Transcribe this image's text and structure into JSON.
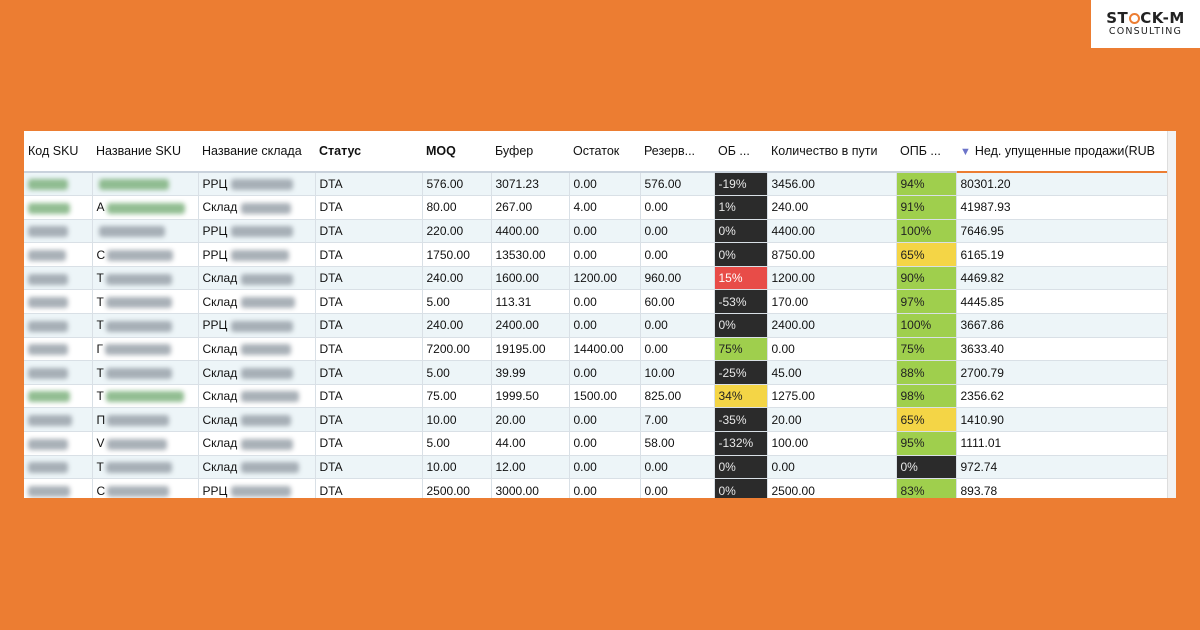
{
  "logo": {
    "line1_a": "ST",
    "line1_b": "CK-M",
    "line2": "CONSULTING"
  },
  "table": {
    "headers": [
      "Код SKU",
      "Название SKU",
      "Название склада",
      "Статус",
      "MOQ",
      "Буфер",
      "Остаток",
      "Резерв...",
      "ОБ ...",
      "Количество в пути",
      "ОПБ ...",
      "Нед. упущенные продажи(RUB"
    ],
    "sort_indicator": "▼",
    "rows": [
      {
        "sku_blur": "green",
        "name_blur": "green",
        "name_prefix": "",
        "wh": "РРЦ",
        "status": "DTA",
        "moq": "576.00",
        "buf": "3071.23",
        "stock": "0.00",
        "res": "576.00",
        "ob": "-19%",
        "ob_c": "black",
        "transit": "3456.00",
        "opb": "94%",
        "opb_c": "green",
        "lost": "80301.20"
      },
      {
        "sku_blur": "green",
        "name_blur": "green",
        "name_prefix": "А",
        "wh": "Склад",
        "status": "DTA",
        "moq": "80.00",
        "buf": "267.00",
        "stock": "4.00",
        "res": "0.00",
        "ob": "1%",
        "ob_c": "black",
        "transit": "240.00",
        "opb": "91%",
        "opb_c": "green",
        "lost": "41987.93"
      },
      {
        "sku_blur": "gray",
        "name_blur": "gray",
        "name_prefix": "",
        "wh": "РРЦ",
        "status": "DTA",
        "moq": "220.00",
        "buf": "4400.00",
        "stock": "0.00",
        "res": "0.00",
        "ob": "0%",
        "ob_c": "black",
        "transit": "4400.00",
        "opb": "100%",
        "opb_c": "green",
        "lost": "7646.95"
      },
      {
        "sku_blur": "gray",
        "name_blur": "gray",
        "name_prefix": "С",
        "wh": "РРЦ",
        "status": "DTA",
        "moq": "1750.00",
        "buf": "13530.00",
        "stock": "0.00",
        "res": "0.00",
        "ob": "0%",
        "ob_c": "black",
        "transit": "8750.00",
        "opb": "65%",
        "opb_c": "yellow",
        "lost": "6165.19"
      },
      {
        "sku_blur": "gray",
        "name_blur": "gray",
        "name_prefix": "Т",
        "wh": "Склад",
        "status": "DTA",
        "moq": "240.00",
        "buf": "1600.00",
        "stock": "1200.00",
        "res": "960.00",
        "ob": "15%",
        "ob_c": "red",
        "transit": "1200.00",
        "opb": "90%",
        "opb_c": "green",
        "lost": "4469.82"
      },
      {
        "sku_blur": "gray",
        "name_blur": "gray",
        "name_prefix": "Т",
        "wh": "Склад",
        "status": "DTA",
        "moq": "5.00",
        "buf": "113.31",
        "stock": "0.00",
        "res": "60.00",
        "ob": "-53%",
        "ob_c": "black",
        "transit": "170.00",
        "opb": "97%",
        "opb_c": "green",
        "lost": "4445.85"
      },
      {
        "sku_blur": "gray",
        "name_blur": "gray",
        "name_prefix": "Т",
        "wh": "РРЦ",
        "status": "DTA",
        "moq": "240.00",
        "buf": "2400.00",
        "stock": "0.00",
        "res": "0.00",
        "ob": "0%",
        "ob_c": "black",
        "transit": "2400.00",
        "opb": "100%",
        "opb_c": "green",
        "lost": "3667.86"
      },
      {
        "sku_blur": "gray",
        "name_blur": "gray",
        "name_prefix": "Г",
        "wh": "Склад",
        "status": "DTA",
        "moq": "7200.00",
        "buf": "19195.00",
        "stock": "14400.00",
        "res": "0.00",
        "ob": "75%",
        "ob_c": "green",
        "transit": "0.00",
        "opb": "75%",
        "opb_c": "green",
        "lost": "3633.40"
      },
      {
        "sku_blur": "gray",
        "name_blur": "gray",
        "name_prefix": "Т",
        "wh": "Склад",
        "status": "DTA",
        "moq": "5.00",
        "buf": "39.99",
        "stock": "0.00",
        "res": "10.00",
        "ob": "-25%",
        "ob_c": "black",
        "transit": "45.00",
        "opb": "88%",
        "opb_c": "green",
        "lost": "2700.79"
      },
      {
        "sku_blur": "green",
        "name_blur": "green",
        "name_prefix": "Т",
        "wh": "Склад",
        "status": "DTA",
        "moq": "75.00",
        "buf": "1999.50",
        "stock": "1500.00",
        "res": "825.00",
        "ob": "34%",
        "ob_c": "yellow",
        "transit": "1275.00",
        "opb": "98%",
        "opb_c": "green",
        "lost": "2356.62"
      },
      {
        "sku_blur": "gray",
        "name_blur": "gray",
        "name_prefix": "П",
        "wh": "Склад",
        "status": "DTA",
        "moq": "10.00",
        "buf": "20.00",
        "stock": "0.00",
        "res": "7.00",
        "ob": "-35%",
        "ob_c": "black",
        "transit": "20.00",
        "opb": "65%",
        "opb_c": "yellow",
        "lost": "1410.90"
      },
      {
        "sku_blur": "gray",
        "name_blur": "gray",
        "name_prefix": "V",
        "wh": "Склад",
        "status": "DTA",
        "moq": "5.00",
        "buf": "44.00",
        "stock": "0.00",
        "res": "58.00",
        "ob": "-132%",
        "ob_c": "black",
        "transit": "100.00",
        "opb": "95%",
        "opb_c": "green",
        "lost": "1111.01"
      },
      {
        "sku_blur": "gray",
        "name_blur": "gray",
        "name_prefix": "Т",
        "wh": "Склад",
        "status": "DTA",
        "moq": "10.00",
        "buf": "12.00",
        "stock": "0.00",
        "res": "0.00",
        "ob": "0%",
        "ob_c": "black",
        "transit": "0.00",
        "opb": "0%",
        "opb_c": "black",
        "lost": "972.74"
      },
      {
        "sku_blur": "gray",
        "name_blur": "gray",
        "name_prefix": "С",
        "wh": "РРЦ",
        "status": "DTA",
        "moq": "2500.00",
        "buf": "3000.00",
        "stock": "0.00",
        "res": "0.00",
        "ob": "0%",
        "ob_c": "black",
        "transit": "2500.00",
        "opb": "83%",
        "opb_c": "green",
        "lost": "893.78"
      }
    ]
  }
}
